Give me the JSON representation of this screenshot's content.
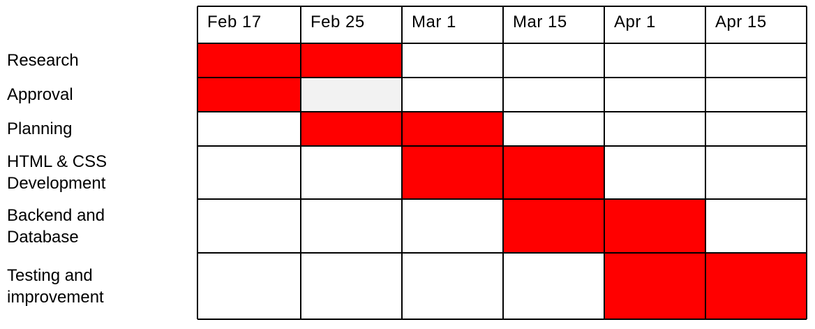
{
  "chart_data": {
    "type": "gantt",
    "columns": [
      "Feb 17",
      "Feb 25",
      "Mar 1",
      "Mar 15",
      "Apr 1",
      "Apr 15"
    ],
    "tasks": [
      {
        "name": "Research",
        "start": 0,
        "end": 2
      },
      {
        "name": "Approval",
        "start": 0,
        "end": 1,
        "pending_start": 1,
        "pending_end": 2
      },
      {
        "name": "Planning",
        "start": 1,
        "end": 3
      },
      {
        "name": "HTML & CSS\nDevelopment",
        "start": 2,
        "end": 4
      },
      {
        "name": "Backend and\nDatabase",
        "start": 3,
        "end": 5
      },
      {
        "name": "Testing and\nimprovement",
        "start": 4,
        "end": 6
      }
    ],
    "grid": true
  },
  "colors": {
    "bar": "#ff0000",
    "pending": "#f2f2f2",
    "cell": "#ffffff",
    "border": "#000000",
    "text": "#000000"
  }
}
